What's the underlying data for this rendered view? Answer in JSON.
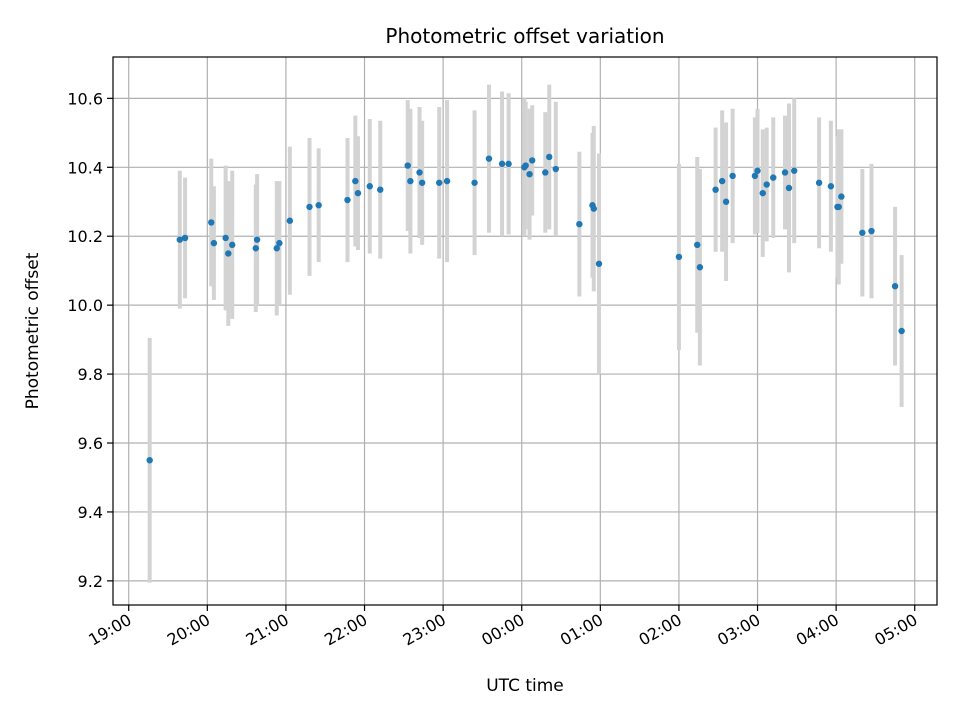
{
  "chart_data": {
    "type": "scatter",
    "title": "Photometric offset variation",
    "xlabel": "UTC time",
    "ylabel": "Photometric offset",
    "x_unit": "minutes since 19:00",
    "xlim": [
      -12,
      617
    ],
    "ylim": [
      9.13,
      10.72
    ],
    "x_ticks": [
      0,
      60,
      120,
      180,
      240,
      300,
      360,
      420,
      480,
      540,
      600
    ],
    "x_tick_labels": [
      "19:00",
      "20:00",
      "21:00",
      "22:00",
      "23:00",
      "00:00",
      "01:00",
      "02:00",
      "03:00",
      "04:00",
      "05:00"
    ],
    "y_ticks": [
      9.2,
      9.4,
      9.6,
      9.8,
      10.0,
      10.2,
      10.4,
      10.6
    ],
    "y_tick_labels": [
      "9.2",
      "9.4",
      "9.6",
      "9.8",
      "10.0",
      "10.2",
      "10.4",
      "10.6"
    ],
    "grid": true,
    "marker_color": "#1f77b4",
    "errorbar_color": "#d3d3d3",
    "points": [
      {
        "x": 16,
        "y": 9.55,
        "err": 0.355
      },
      {
        "x": 39,
        "y": 10.19,
        "err": 0.2
      },
      {
        "x": 43,
        "y": 10.195,
        "err": 0.175
      },
      {
        "x": 63,
        "y": 10.24,
        "err": 0.185
      },
      {
        "x": 65,
        "y": 10.18,
        "err": 0.165
      },
      {
        "x": 74,
        "y": 10.195,
        "err": 0.21
      },
      {
        "x": 76,
        "y": 10.15,
        "err": 0.21
      },
      {
        "x": 79,
        "y": 10.175,
        "err": 0.215
      },
      {
        "x": 97,
        "y": 10.165,
        "err": 0.185
      },
      {
        "x": 98,
        "y": 10.19,
        "err": 0.19
      },
      {
        "x": 113,
        "y": 10.165,
        "err": 0.195
      },
      {
        "x": 115,
        "y": 10.18,
        "err": 0.18
      },
      {
        "x": 123,
        "y": 10.245,
        "err": 0.215
      },
      {
        "x": 138,
        "y": 10.285,
        "err": 0.2
      },
      {
        "x": 145,
        "y": 10.29,
        "err": 0.165
      },
      {
        "x": 167,
        "y": 10.305,
        "err": 0.18
      },
      {
        "x": 173,
        "y": 10.36,
        "err": 0.19
      },
      {
        "x": 175,
        "y": 10.325,
        "err": 0.165
      },
      {
        "x": 184,
        "y": 10.345,
        "err": 0.195
      },
      {
        "x": 192,
        "y": 10.335,
        "err": 0.2
      },
      {
        "x": 213,
        "y": 10.405,
        "err": 0.19
      },
      {
        "x": 215,
        "y": 10.36,
        "err": 0.21
      },
      {
        "x": 222,
        "y": 10.385,
        "err": 0.19
      },
      {
        "x": 224,
        "y": 10.355,
        "err": 0.18
      },
      {
        "x": 237,
        "y": 10.355,
        "err": 0.22
      },
      {
        "x": 243,
        "y": 10.36,
        "err": 0.235
      },
      {
        "x": 264,
        "y": 10.355,
        "err": 0.21
      },
      {
        "x": 275,
        "y": 10.425,
        "err": 0.215
      },
      {
        "x": 285,
        "y": 10.41,
        "err": 0.21
      },
      {
        "x": 290,
        "y": 10.41,
        "err": 0.205
      },
      {
        "x": 302,
        "y": 10.4,
        "err": 0.2
      },
      {
        "x": 303,
        "y": 10.405,
        "err": 0.185
      },
      {
        "x": 306,
        "y": 10.38,
        "err": 0.19
      },
      {
        "x": 308,
        "y": 10.42,
        "err": 0.16
      },
      {
        "x": 318,
        "y": 10.385,
        "err": 0.175
      },
      {
        "x": 321,
        "y": 10.43,
        "err": 0.21
      },
      {
        "x": 326,
        "y": 10.395,
        "err": 0.195
      },
      {
        "x": 344,
        "y": 10.235,
        "err": 0.21
      },
      {
        "x": 354,
        "y": 10.29,
        "err": 0.21
      },
      {
        "x": 355,
        "y": 10.28,
        "err": 0.24
      },
      {
        "x": 359,
        "y": 10.12,
        "err": 0.32
      },
      {
        "x": 420,
        "y": 10.14,
        "err": 0.27
      },
      {
        "x": 434,
        "y": 10.175,
        "err": 0.255
      },
      {
        "x": 436,
        "y": 10.11,
        "err": 0.285
      },
      {
        "x": 448,
        "y": 10.335,
        "err": 0.18
      },
      {
        "x": 453,
        "y": 10.36,
        "err": 0.205
      },
      {
        "x": 456,
        "y": 10.3,
        "err": 0.23
      },
      {
        "x": 461,
        "y": 10.375,
        "err": 0.195
      },
      {
        "x": 478,
        "y": 10.375,
        "err": 0.17
      },
      {
        "x": 480,
        "y": 10.39,
        "err": 0.18
      },
      {
        "x": 484,
        "y": 10.325,
        "err": 0.185
      },
      {
        "x": 487,
        "y": 10.35,
        "err": 0.165
      },
      {
        "x": 492,
        "y": 10.37,
        "err": 0.175
      },
      {
        "x": 501,
        "y": 10.385,
        "err": 0.165
      },
      {
        "x": 504,
        "y": 10.34,
        "err": 0.245
      },
      {
        "x": 508,
        "y": 10.39,
        "err": 0.21
      },
      {
        "x": 527,
        "y": 10.355,
        "err": 0.19
      },
      {
        "x": 536,
        "y": 10.345,
        "err": 0.19
      },
      {
        "x": 541,
        "y": 10.285,
        "err": 0.205
      },
      {
        "x": 542,
        "y": 10.285,
        "err": 0.225
      },
      {
        "x": 544,
        "y": 10.315,
        "err": 0.195
      },
      {
        "x": 560,
        "y": 10.21,
        "err": 0.185
      },
      {
        "x": 567,
        "y": 10.215,
        "err": 0.195
      },
      {
        "x": 585,
        "y": 10.055,
        "err": 0.23
      },
      {
        "x": 590,
        "y": 9.925,
        "err": 0.22
      }
    ]
  }
}
